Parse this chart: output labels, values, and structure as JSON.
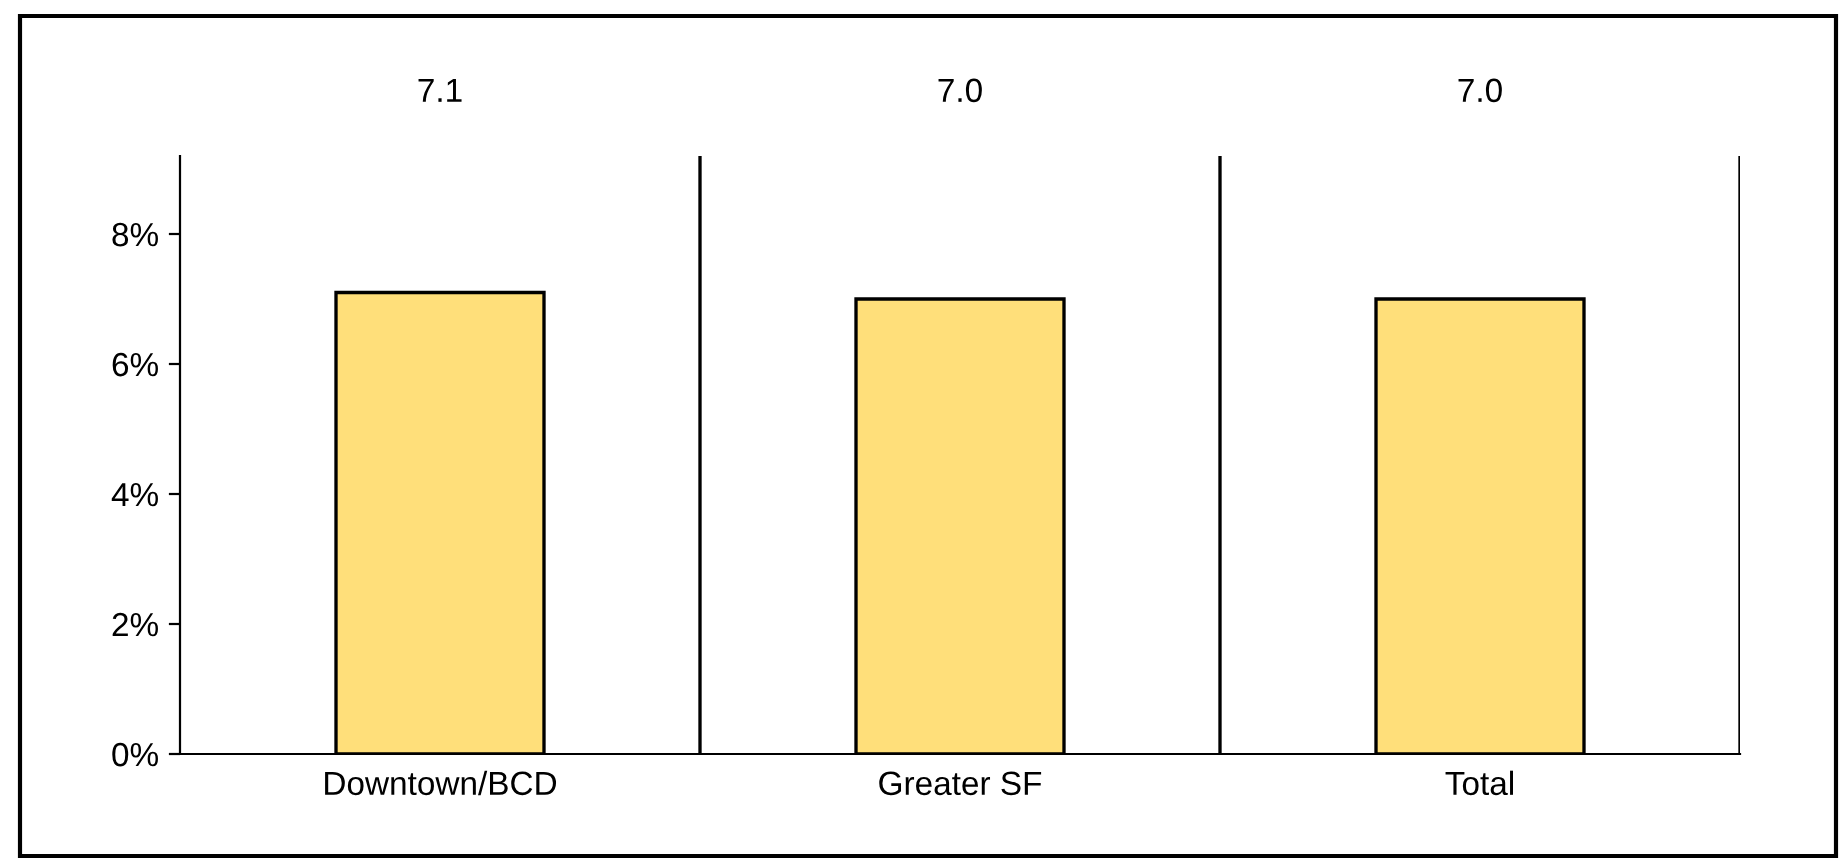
{
  "chart_data": {
    "type": "bar",
    "categories": [
      "Downtown/BCD",
      "Greater SF",
      "Total"
    ],
    "values": [
      7.1,
      7.0,
      7.0
    ],
    "color": "#ffdf7a",
    "value_labels": [
      "7.1",
      "7.0",
      "7.0"
    ],
    "ylim": [
      0,
      9.2
    ],
    "yticks": [
      {
        "value": 0,
        "label": "0%"
      },
      {
        "value": 2,
        "label": "2%"
      },
      {
        "value": 4,
        "label": "4%"
      },
      {
        "value": 6,
        "label": "6%"
      },
      {
        "value": 8,
        "label": "8%"
      }
    ],
    "grid": "x",
    "legend": false
  }
}
